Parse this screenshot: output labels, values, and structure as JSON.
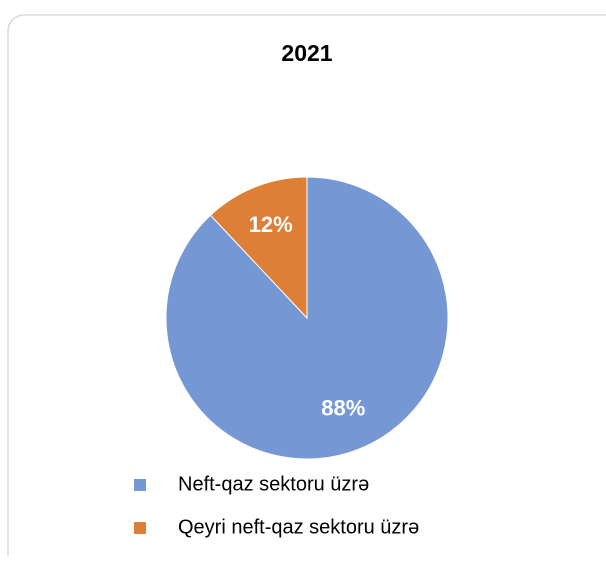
{
  "chart_data": {
    "type": "pie",
    "title": "2021",
    "categories": [
      "Neft-qaz sektoru üzrə",
      "Qeyri neft-qaz sektoru üzrə"
    ],
    "values": [
      88,
      12
    ],
    "value_labels": [
      "88%",
      "12%"
    ],
    "colors": [
      "#7597d3",
      "#dd7f37"
    ],
    "legend": "bottom"
  }
}
